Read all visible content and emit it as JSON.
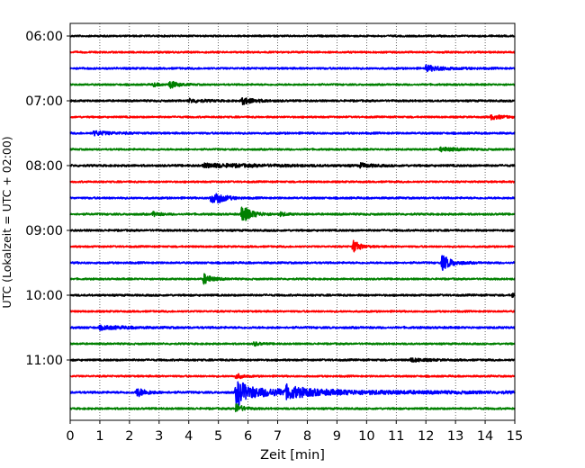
{
  "chart_data": {
    "type": "line",
    "title": "",
    "xlabel": "Zeit  [min]",
    "ylabel": "UTC (Lokalzeit = UTC + 02:00)",
    "xlim": [
      0,
      15
    ],
    "xticks": [
      "0",
      "1",
      "2",
      "3",
      "4",
      "5",
      "6",
      "7",
      "8",
      "9",
      "10",
      "11",
      "12",
      "13",
      "14",
      "15"
    ],
    "yticks": [
      "06:00",
      "07:00",
      "08:00",
      "09:00",
      "10:00",
      "11:00"
    ],
    "grid": "vertical dotted",
    "colors": [
      "#000000",
      "#ff0000",
      "#0000ff",
      "#008000"
    ],
    "traces": [
      {
        "start": "06:00",
        "color": "#000000",
        "noise": 0.18,
        "events": []
      },
      {
        "start": "06:15",
        "color": "#ff0000",
        "noise": 0.18,
        "events": []
      },
      {
        "start": "06:30",
        "color": "#0000ff",
        "noise": 0.2,
        "events": [
          {
            "t": 12.0,
            "amp": 0.5,
            "dur": 0.6
          }
        ]
      },
      {
        "start": "06:45",
        "color": "#008000",
        "noise": 0.18,
        "events": [
          {
            "t": 3.35,
            "amp": 0.7,
            "dur": 0.25
          },
          {
            "t": 2.8,
            "amp": 0.3,
            "dur": 0.2
          }
        ]
      },
      {
        "start": "07:00",
        "color": "#000000",
        "noise": 0.2,
        "events": [
          {
            "t": 5.8,
            "amp": 0.6,
            "dur": 0.4
          },
          {
            "t": 4.0,
            "amp": 0.3,
            "dur": 0.5
          }
        ]
      },
      {
        "start": "07:15",
        "color": "#ff0000",
        "noise": 0.18,
        "events": [
          {
            "t": 14.2,
            "amp": 0.4,
            "dur": 0.4
          }
        ]
      },
      {
        "start": "07:30",
        "color": "#0000ff",
        "noise": 0.2,
        "events": [
          {
            "t": 0.8,
            "amp": 0.4,
            "dur": 0.5
          }
        ]
      },
      {
        "start": "07:45",
        "color": "#008000",
        "noise": 0.18,
        "events": [
          {
            "t": 12.5,
            "amp": 0.35,
            "dur": 0.6
          }
        ]
      },
      {
        "start": "08:00",
        "color": "#000000",
        "noise": 0.22,
        "events": [
          {
            "t": 4.5,
            "amp": 0.3,
            "dur": 2.0
          },
          {
            "t": 9.8,
            "amp": 0.4,
            "dur": 0.3
          }
        ]
      },
      {
        "start": "08:15",
        "color": "#ff0000",
        "noise": 0.18,
        "events": []
      },
      {
        "start": "08:30",
        "color": "#0000ff",
        "noise": 0.2,
        "events": [
          {
            "t": 4.75,
            "amp": 1.0,
            "dur": 0.25
          },
          {
            "t": 4.95,
            "amp": 0.6,
            "dur": 0.3
          }
        ]
      },
      {
        "start": "08:45",
        "color": "#008000",
        "noise": 0.2,
        "events": [
          {
            "t": 5.8,
            "amp": 1.6,
            "dur": 0.3
          },
          {
            "t": 2.8,
            "amp": 0.4,
            "dur": 0.2
          },
          {
            "t": 7.1,
            "amp": 0.3,
            "dur": 0.2
          }
        ]
      },
      {
        "start": "09:00",
        "color": "#000000",
        "noise": 0.2,
        "events": []
      },
      {
        "start": "09:15",
        "color": "#ff0000",
        "noise": 0.18,
        "events": [
          {
            "t": 9.55,
            "amp": 1.2,
            "dur": 0.2
          }
        ]
      },
      {
        "start": "09:30",
        "color": "#0000ff",
        "noise": 0.2,
        "events": [
          {
            "t": 12.55,
            "amp": 1.4,
            "dur": 0.3
          }
        ]
      },
      {
        "start": "09:45",
        "color": "#008000",
        "noise": 0.18,
        "events": [
          {
            "t": 4.5,
            "amp": 1.0,
            "dur": 0.25
          }
        ]
      },
      {
        "start": "10:00",
        "color": "#000000",
        "noise": 0.2,
        "events": [
          {
            "t": 14.9,
            "amp": 0.4,
            "dur": 0.2
          }
        ]
      },
      {
        "start": "10:15",
        "color": "#ff0000",
        "noise": 0.18,
        "events": []
      },
      {
        "start": "10:30",
        "color": "#0000ff",
        "noise": 0.22,
        "events": [
          {
            "t": 1.0,
            "amp": 0.3,
            "dur": 0.8
          }
        ]
      },
      {
        "start": "10:45",
        "color": "#008000",
        "noise": 0.18,
        "events": [
          {
            "t": 6.2,
            "amp": 0.35,
            "dur": 0.2
          }
        ]
      },
      {
        "start": "11:00",
        "color": "#000000",
        "noise": 0.2,
        "events": [
          {
            "t": 11.5,
            "amp": 0.3,
            "dur": 0.5
          }
        ]
      },
      {
        "start": "11:15",
        "color": "#ff0000",
        "noise": 0.18,
        "events": [
          {
            "t": 5.6,
            "amp": 0.5,
            "dur": 0.2
          }
        ]
      },
      {
        "start": "11:30",
        "color": "#0000ff",
        "noise": 0.22,
        "events": [
          {
            "t": 2.25,
            "amp": 0.8,
            "dur": 0.3
          },
          {
            "t": 5.6,
            "amp": 2.2,
            "dur": 0.25
          },
          {
            "t": 5.7,
            "amp": 0.7,
            "dur": 4.0
          },
          {
            "t": 7.3,
            "amp": 0.9,
            "dur": 0.5
          }
        ]
      },
      {
        "start": "11:45",
        "color": "#008000",
        "noise": 0.2,
        "events": [
          {
            "t": 5.6,
            "amp": 0.9,
            "dur": 0.2
          }
        ]
      }
    ]
  }
}
